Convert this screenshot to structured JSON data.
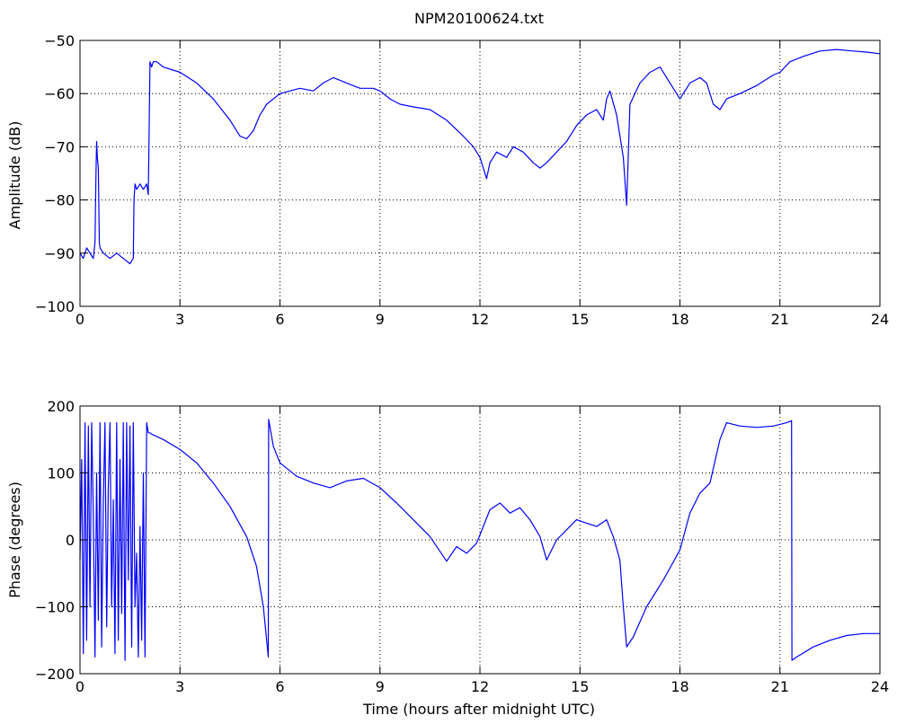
{
  "chart_data": [
    {
      "type": "line",
      "title": "NPM20100624.txt",
      "xlabel": "",
      "ylabel": "Amplitude (dB)",
      "xlim": [
        0,
        24
      ],
      "ylim": [
        -100,
        -50
      ],
      "xticks": [
        0,
        3,
        6,
        9,
        12,
        15,
        18,
        21,
        24
      ],
      "yticks": [
        -100,
        -90,
        -80,
        -70,
        -60,
        -50
      ],
      "xtick_labels": [
        "0",
        "3",
        "6",
        "9",
        "12",
        "15",
        "18",
        "21",
        "24"
      ],
      "ytick_labels": [
        "−100",
        "−90",
        "−80",
        "−70",
        "−60",
        "−50"
      ],
      "grid": true,
      "line_color": "#0000ff",
      "series": [
        {
          "x": [
            0.0,
            0.1,
            0.2,
            0.3,
            0.4,
            0.45,
            0.48,
            0.5,
            0.52,
            0.55,
            0.58,
            0.6,
            0.7,
            0.9,
            1.1,
            1.3,
            1.5,
            1.6,
            1.62,
            1.65,
            1.7,
            1.8,
            1.9,
            2.0,
            2.05,
            2.1,
            2.15,
            2.2,
            2.25,
            2.3,
            2.5,
            3.0,
            3.5,
            4.0,
            4.5,
            4.8,
            5.0,
            5.2,
            5.4,
            5.6,
            5.8,
            6.0,
            6.3,
            6.6,
            7.0,
            7.3,
            7.6,
            8.0,
            8.4,
            8.8,
            9.0,
            9.3,
            9.6,
            10.0,
            10.5,
            11.0,
            11.5,
            11.8,
            12.0,
            12.2,
            12.3,
            12.5,
            12.8,
            13.0,
            13.3,
            13.6,
            13.8,
            14.0,
            14.3,
            14.6,
            14.9,
            15.2,
            15.5,
            15.7,
            15.8,
            15.9,
            16.1,
            16.3,
            16.4,
            16.5,
            16.8,
            17.1,
            17.4,
            17.7,
            18.0,
            18.3,
            18.6,
            18.8,
            19.0,
            19.2,
            19.4,
            19.8,
            20.3,
            20.8,
            21.0,
            21.3,
            21.7,
            22.2,
            22.7,
            23.2,
            23.6,
            24.0
          ],
          "y": [
            -90,
            -91,
            -89,
            -90,
            -91,
            -88,
            -75,
            -69,
            -72,
            -74,
            -88,
            -89,
            -90,
            -91,
            -90,
            -91,
            -92,
            -91,
            -80,
            -77,
            -78,
            -77,
            -78,
            -77,
            -79,
            -54,
            -55,
            -54,
            -54,
            -54,
            -55,
            -56,
            -58,
            -61,
            -65,
            -68,
            -68.5,
            -67,
            -64,
            -62,
            -61,
            -60,
            -59.5,
            -59,
            -59.5,
            -58,
            -57,
            -58,
            -59,
            -59,
            -59.5,
            -61,
            -62,
            -62.5,
            -63,
            -65,
            -68,
            -70,
            -72,
            -76,
            -73,
            -71,
            -72,
            -70,
            -71,
            -73,
            -74,
            -73,
            -71,
            -69,
            -66,
            -64,
            -63,
            -65,
            -61,
            -59.5,
            -64,
            -72,
            -81,
            -62,
            -58,
            -56,
            -55,
            -58,
            -61,
            -58,
            -57,
            -58,
            -62,
            -63,
            -61,
            -60,
            -58.5,
            -56.5,
            -56,
            -54,
            -53,
            -52,
            -51.7,
            -52,
            -52.2,
            -52.5
          ]
        }
      ]
    },
    {
      "type": "line",
      "title": "",
      "xlabel": "Time (hours after midnight UTC)",
      "ylabel": "Phase (degrees)",
      "xlim": [
        0,
        24
      ],
      "ylim": [
        -200,
        200
      ],
      "xticks": [
        0,
        3,
        6,
        9,
        12,
        15,
        18,
        21,
        24
      ],
      "yticks": [
        -200,
        -100,
        0,
        100,
        200
      ],
      "xtick_labels": [
        "0",
        "3",
        "6",
        "9",
        "12",
        "15",
        "18",
        "21",
        "24"
      ],
      "ytick_labels": [
        "−200",
        "−100",
        "0",
        "100",
        "200"
      ],
      "grid": true,
      "line_color": "#0000ff",
      "series": [
        {
          "x": [
            0.0,
            0.05,
            0.1,
            0.15,
            0.2,
            0.25,
            0.3,
            0.35,
            0.4,
            0.45,
            0.5,
            0.55,
            0.6,
            0.65,
            0.7,
            0.75,
            0.8,
            0.85,
            0.9,
            0.95,
            1.0,
            1.05,
            1.1,
            1.15,
            1.2,
            1.25,
            1.3,
            1.35,
            1.4,
            1.45,
            1.5,
            1.55,
            1.6,
            1.65,
            1.7,
            1.75,
            1.8,
            1.85,
            1.9,
            1.95,
            2.0,
            2.05,
            2.1,
            2.15,
            2.5,
            3.0,
            3.5,
            4.0,
            4.5,
            5.0,
            5.3,
            5.5,
            5.65,
            5.66,
            5.8,
            6.0,
            6.5,
            7.0,
            7.5,
            8.0,
            8.5,
            9.0,
            9.5,
            10.0,
            10.5,
            11.0,
            11.3,
            11.6,
            11.9,
            12.1,
            12.3,
            12.6,
            12.9,
            13.2,
            13.5,
            13.8,
            14.0,
            14.3,
            14.6,
            14.9,
            15.2,
            15.5,
            15.8,
            16.0,
            16.2,
            16.3,
            16.4,
            16.6,
            17.0,
            17.5,
            18.0,
            18.3,
            18.6,
            18.9,
            19.2,
            19.4,
            19.8,
            20.3,
            20.8,
            21.2,
            21.35,
            21.36,
            21.5,
            22.0,
            22.5,
            23.0,
            23.5,
            24.0
          ],
          "y": [
            -30,
            120,
            -170,
            175,
            -150,
            170,
            -100,
            175,
            40,
            -175,
            100,
            -120,
            175,
            -160,
            60,
            175,
            -130,
            80,
            175,
            -100,
            60,
            -170,
            175,
            -150,
            120,
            -110,
            175,
            -180,
            175,
            -60,
            170,
            -160,
            175,
            -100,
            -20,
            -175,
            20,
            -150,
            100,
            -175,
            175,
            160,
            160,
            158,
            150,
            135,
            115,
            85,
            50,
            5,
            -40,
            -100,
            -175,
            180,
            140,
            115,
            95,
            85,
            78,
            88,
            92,
            78,
            55,
            30,
            5,
            -32,
            -10,
            -20,
            -5,
            20,
            45,
            55,
            40,
            48,
            30,
            5,
            -30,
            0,
            15,
            30,
            25,
            20,
            30,
            5,
            -30,
            -100,
            -160,
            -145,
            -100,
            -60,
            -15,
            40,
            70,
            85,
            150,
            175,
            170,
            168,
            170,
            175,
            178,
            -180,
            -175,
            -160,
            -150,
            -143,
            -140,
            -140
          ]
        }
      ]
    }
  ]
}
